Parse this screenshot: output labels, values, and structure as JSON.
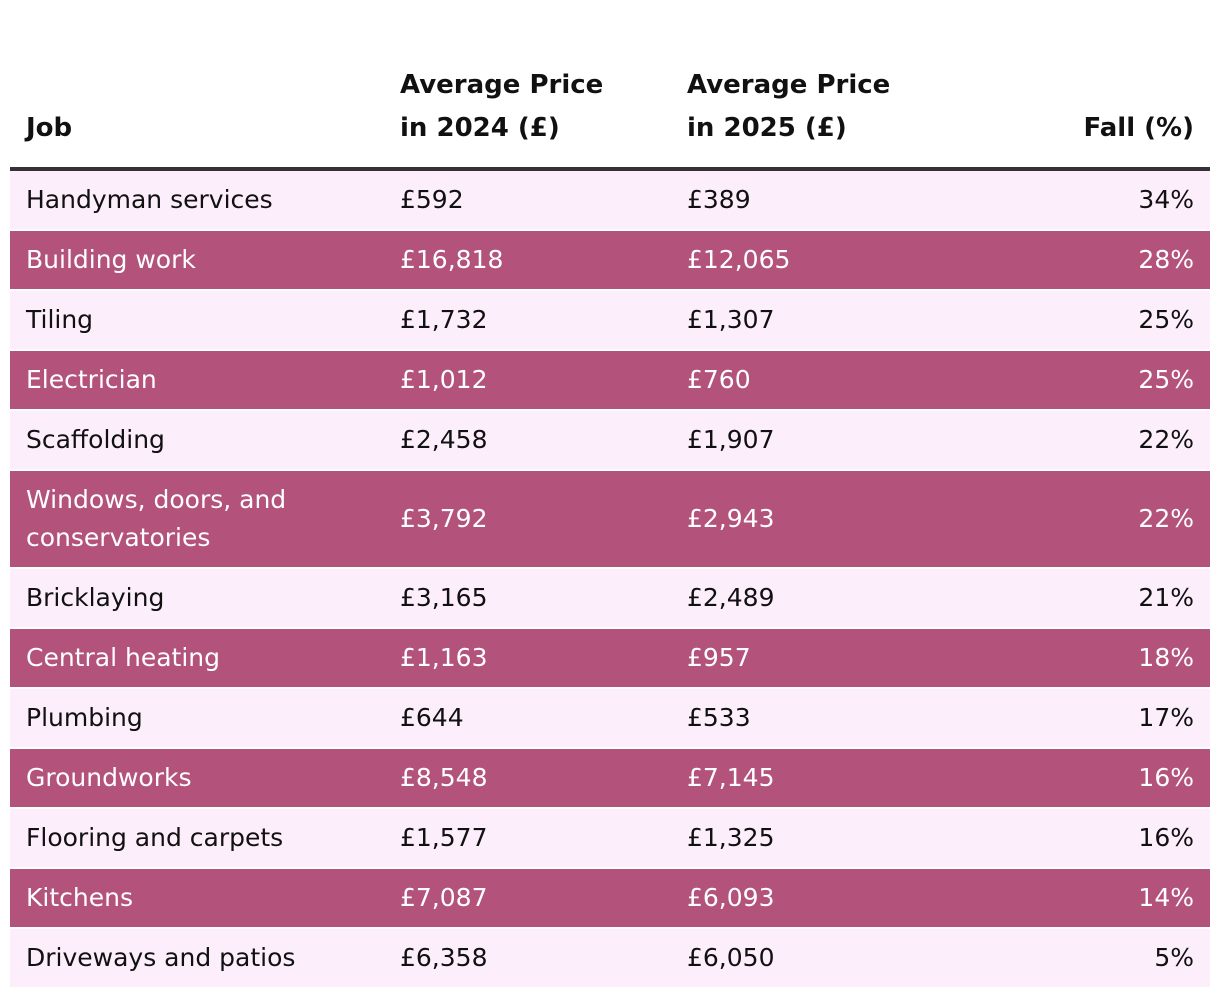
{
  "table": {
    "headers": {
      "job": "Job",
      "price_2024": [
        "Average Price",
        "in 2024 (£)"
      ],
      "price_2025": [
        "Average Price",
        "in 2025 (£)"
      ],
      "fall": "Fall (%)"
    },
    "rows": [
      {
        "job": "Handyman services",
        "price_2024": "£592",
        "price_2025": "£389",
        "fall": "34%"
      },
      {
        "job": "Building work",
        "price_2024": "£16,818",
        "price_2025": "£12,065",
        "fall": "28%"
      },
      {
        "job": "Tiling",
        "price_2024": "£1,732",
        "price_2025": "£1,307",
        "fall": "25%"
      },
      {
        "job": "Electrician",
        "price_2024": "£1,012",
        "price_2025": "£760",
        "fall": "25%"
      },
      {
        "job": "Scaffolding",
        "price_2024": "£2,458",
        "price_2025": "£1,907",
        "fall": "22%"
      },
      {
        "job": "Windows, doors, and conservatories",
        "price_2024": "£3,792",
        "price_2025": "£2,943",
        "fall": "22%"
      },
      {
        "job": "Bricklaying",
        "price_2024": "£3,165",
        "price_2025": "£2,489",
        "fall": "21%"
      },
      {
        "job": "Central heating",
        "price_2024": "£1,163",
        "price_2025": "£957",
        "fall": "18%"
      },
      {
        "job": "Plumbing",
        "price_2024": "£644",
        "price_2025": "£533",
        "fall": "17%"
      },
      {
        "job": "Groundworks",
        "price_2024": "£8,548",
        "price_2025": "£7,145",
        "fall": "16%"
      },
      {
        "job": "Flooring and carpets",
        "price_2024": "£1,577",
        "price_2025": "£1,325",
        "fall": "16%"
      },
      {
        "job": "Kitchens",
        "price_2024": "£7,087",
        "price_2025": "£6,093",
        "fall": "14%"
      },
      {
        "job": "Driveways and patios",
        "price_2024": "£6,358",
        "price_2025": "£6,050",
        "fall": "5%"
      }
    ]
  },
  "colors": {
    "row_light": "#fdeefc",
    "row_dark": "#b3527b",
    "header_rule": "#333333"
  },
  "chart_data": {
    "type": "table",
    "columns": [
      "Job",
      "Average Price in 2024 (£)",
      "Average Price in 2025 (£)",
      "Fall (%)"
    ],
    "rows": [
      [
        "Handyman services",
        592,
        389,
        34
      ],
      [
        "Building work",
        16818,
        12065,
        28
      ],
      [
        "Tiling",
        1732,
        1307,
        25
      ],
      [
        "Electrician",
        1012,
        760,
        25
      ],
      [
        "Scaffolding",
        2458,
        1907,
        22
      ],
      [
        "Windows, doors, and conservatories",
        3792,
        2943,
        22
      ],
      [
        "Bricklaying",
        3165,
        2489,
        21
      ],
      [
        "Central heating",
        1163,
        957,
        18
      ],
      [
        "Plumbing",
        644,
        533,
        17
      ],
      [
        "Groundworks",
        8548,
        7145,
        16
      ],
      [
        "Flooring and carpets",
        1577,
        1325,
        16
      ],
      [
        "Kitchens",
        7087,
        6093,
        14
      ],
      [
        "Driveways and patios",
        6358,
        6050,
        5
      ]
    ]
  }
}
